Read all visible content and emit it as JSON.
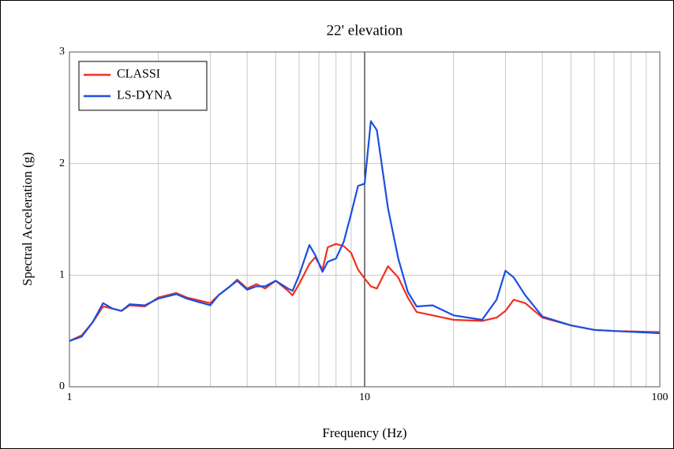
{
  "chart_data": {
    "type": "line",
    "title": "22' elevation",
    "x_label": "Frequency (Hz)",
    "y_label": "Spectral Acceleration (g)",
    "x_scale": "log",
    "xlim": [
      1,
      100
    ],
    "ylim": [
      0,
      3
    ],
    "xticks": [
      1,
      10,
      100
    ],
    "yticks": [
      0,
      1,
      2,
      3
    ],
    "x_minor_grid": [
      2,
      3,
      4,
      5,
      6,
      7,
      8,
      9,
      20,
      30,
      40,
      50,
      60,
      70,
      80,
      90
    ],
    "grid": true,
    "legend": "upper-left",
    "x": [
      1,
      1.1,
      1.2,
      1.3,
      1.4,
      1.5,
      1.6,
      1.8,
      2,
      2.3,
      2.5,
      3,
      3.2,
      3.5,
      3.7,
      4,
      4.3,
      4.6,
      5,
      5.5,
      5.7,
      6,
      6.5,
      6.8,
      7.2,
      7.5,
      8,
      8.5,
      9,
      9.5,
      10,
      10.5,
      11,
      12,
      13,
      14,
      15,
      17,
      20,
      25,
      28,
      30,
      32,
      35,
      40,
      50,
      60,
      70,
      100
    ],
    "series": [
      {
        "name": "CLASSI",
        "color": "#f03020",
        "values": [
          0.41,
          0.46,
          0.58,
          0.72,
          0.7,
          0.68,
          0.73,
          0.72,
          0.8,
          0.84,
          0.8,
          0.75,
          0.82,
          0.9,
          0.96,
          0.88,
          0.92,
          0.88,
          0.95,
          0.86,
          0.82,
          0.92,
          1.1,
          1.16,
          1.05,
          1.25,
          1.28,
          1.26,
          1.2,
          1.05,
          0.97,
          0.9,
          0.88,
          1.08,
          0.98,
          0.8,
          0.67,
          0.64,
          0.6,
          0.59,
          0.62,
          0.68,
          0.78,
          0.75,
          0.62,
          0.55,
          0.51,
          0.5,
          0.49
        ]
      },
      {
        "name": "LS-DYNA",
        "color": "#1a4fe0",
        "values": [
          0.41,
          0.45,
          0.58,
          0.75,
          0.7,
          0.68,
          0.74,
          0.73,
          0.79,
          0.83,
          0.79,
          0.73,
          0.82,
          0.9,
          0.95,
          0.87,
          0.9,
          0.9,
          0.95,
          0.88,
          0.86,
          1.0,
          1.27,
          1.18,
          1.03,
          1.12,
          1.15,
          1.3,
          1.55,
          1.8,
          1.82,
          2.38,
          2.3,
          1.6,
          1.15,
          0.85,
          0.72,
          0.73,
          0.64,
          0.6,
          0.78,
          1.04,
          0.98,
          0.82,
          0.63,
          0.55,
          0.51,
          0.5,
          0.48
        ]
      }
    ]
  }
}
